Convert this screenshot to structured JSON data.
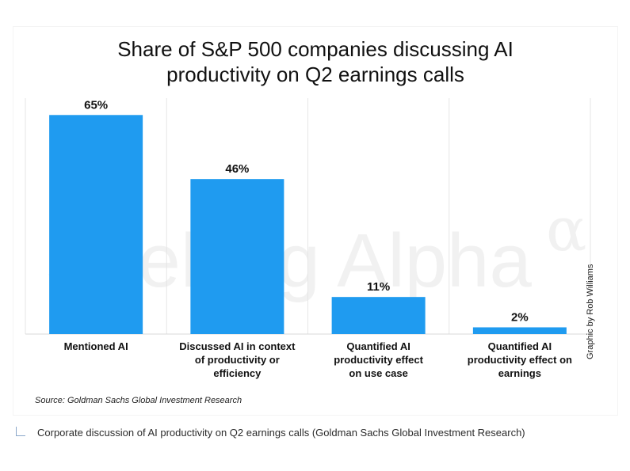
{
  "chart_data": {
    "type": "bar",
    "title": "Share of S&P 500 companies discussing AI\nproductivity on Q2 earnings calls",
    "categories": [
      [
        "Mentioned AI"
      ],
      [
        "Discussed AI in context",
        "of productivity or",
        "efficiency"
      ],
      [
        "Quantified AI",
        "productivity effect",
        "on use case"
      ],
      [
        "Quantified AI",
        "productivity effect on",
        "earnings"
      ]
    ],
    "values": [
      65,
      46,
      11,
      2
    ],
    "value_labels": [
      "65%",
      "46%",
      "11%",
      "2%"
    ],
    "ylim": [
      0,
      70
    ],
    "grid": "vertical separators",
    "bar_color": "#1f9bf0",
    "legend": "none"
  },
  "watermark": {
    "text": "Seeking Alpha",
    "symbol": "α"
  },
  "source": "Source: Goldman Sachs Global Investment Research",
  "credit": "Graphic by Rob Williams",
  "caption": "Corporate discussion of AI productivity on Q2 earnings calls (Goldman Sachs Global Investment Research)"
}
